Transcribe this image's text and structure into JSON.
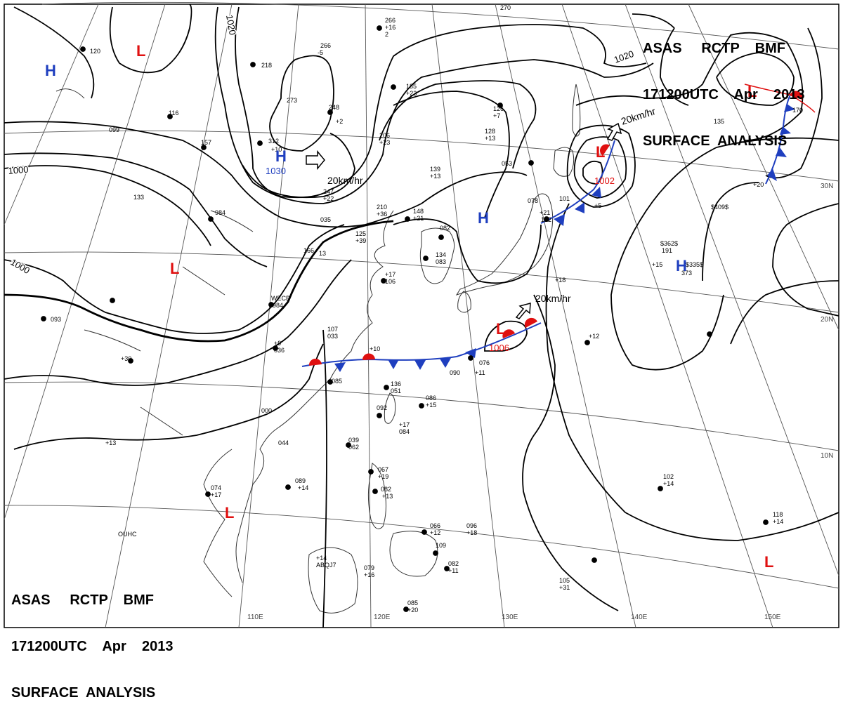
{
  "header": {
    "line1": "ASAS     RCTP    BMF",
    "line2": "171200UTC    Apr    2013",
    "line3": "SURFACE  ANALYSIS"
  },
  "longitude_labels": [
    "110E",
    "120E",
    "130E",
    "140E",
    "150E"
  ],
  "latitude_labels": [
    "30N",
    "20N",
    "10N"
  ],
  "isobar_labels": [
    "1020",
    "1020",
    "1000",
    "1000"
  ],
  "pressure_centers": [
    {
      "type": "H",
      "value": "",
      "color": "#1f3fbf"
    },
    {
      "type": "L",
      "value": "",
      "color": "#e01010"
    },
    {
      "type": "H",
      "value": "1030",
      "color": "#1f3fbf"
    },
    {
      "type": "L",
      "value": "",
      "color": "#e01010"
    },
    {
      "type": "H",
      "value": "",
      "color": "#1f3fbf"
    },
    {
      "type": "L",
      "value": "1002",
      "color": "#e01010"
    },
    {
      "type": "L",
      "value": "",
      "color": "#e01010"
    },
    {
      "type": "H",
      "value": "",
      "color": "#1f3fbf"
    },
    {
      "type": "L",
      "value": "1006",
      "color": "#e01010"
    },
    {
      "type": "L",
      "value": "",
      "color": "#e01010"
    },
    {
      "type": "L",
      "value": "",
      "color": "#e01010"
    }
  ],
  "motion_vectors": [
    "20km/hr",
    "20km/hr",
    "20km/hr"
  ],
  "station_values": [
    "266",
    "+16",
    "2",
    "270",
    "120",
    "266",
    "-5",
    "218",
    "273",
    "312",
    "+10",
    "248",
    "+2",
    "206",
    "+23",
    "185",
    "+23",
    "126",
    "+7",
    "128",
    "+13",
    "139",
    "+13",
    "099",
    "116",
    "157",
    "247",
    "+22",
    "210",
    "+36",
    "148",
    "+21",
    "125",
    "+39",
    "135",
    "+20",
    "170",
    "133",
    "984",
    "035",
    "166",
    "13",
    "082",
    "134",
    "083",
    "+21",
    "122",
    "+5",
    "$409$",
    "$362$",
    "191",
    "+15",
    "$335$",
    "373",
    "WECB",
    "984",
    "+17",
    "106",
    "+18",
    "107",
    "033",
    "+9",
    "036",
    "+10",
    "076",
    "+11",
    "090",
    "+12",
    "085",
    "136",
    "051",
    "086",
    "+15",
    "092",
    "+17",
    "084",
    "093",
    "+30",
    "000",
    "044",
    "039",
    "062",
    "089",
    "+14",
    "074",
    "+17",
    "067",
    "+19",
    "082",
    "+13",
    "066",
    "+12",
    "096",
    "+18",
    "109",
    "+14",
    "ABQJ7",
    "079",
    "+16",
    "082",
    "+11",
    "085",
    "+20",
    "105",
    "+31",
    "102",
    "+14",
    "118",
    "+14",
    "101",
    "+13",
    "OUHC",
    "053",
    "078"
  ],
  "colors": {
    "isobar": "#000000",
    "coast": "#333333",
    "grid": "#555555",
    "high": "#1f3fbf",
    "low": "#e01010",
    "cold_front": "#1f3fbf",
    "warm_front": "#e01010"
  }
}
